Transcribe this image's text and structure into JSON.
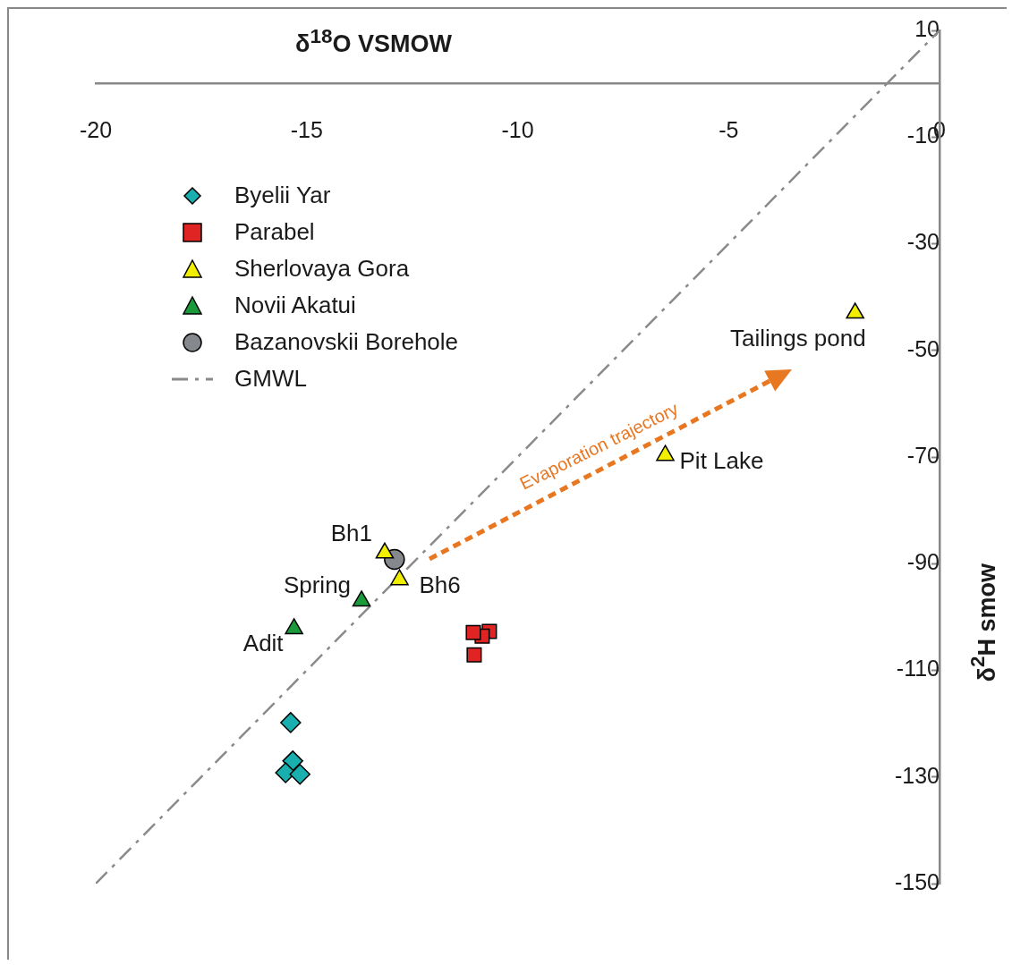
{
  "chart_data": {
    "type": "scatter",
    "xlabel": "δ$^{18}$O VSMOW",
    "ylabel": "δ$^{2}$H smow",
    "xlim": [
      -20,
      0
    ],
    "ylim": [
      -150,
      10
    ],
    "xticks": [
      -20,
      -15,
      -10,
      -5,
      0
    ],
    "yticks": [
      10,
      -10,
      -30,
      -50,
      -70,
      -90,
      -110,
      -130,
      -150
    ],
    "grid": false,
    "legend": "top left",
    "series": [
      {
        "name": "Byelii Yar",
        "type": "scatter",
        "marker": "diamond",
        "color": "#1aafaf",
        "x": [
          -15.38,
          -15.33,
          -15.5,
          -15.16
        ],
        "values": [
          -119.8,
          -127,
          -129.2,
          -129.5
        ]
      },
      {
        "name": "Parabel",
        "type": "scatter",
        "marker": "square",
        "color": "#e02424",
        "x": [
          -10.67,
          -10.84,
          -11.03,
          -11.05
        ],
        "values": [
          -102.7,
          -103.6,
          -107.1,
          -102.9
        ]
      },
      {
        "name": "Sherlovaya Gora",
        "type": "scatter",
        "marker": "triangle",
        "color": "#f2ee00",
        "x": [
          -2.0,
          -6.5,
          -13.15,
          -12.8
        ],
        "values": [
          -43,
          -69.7,
          -88,
          -93
        ]
      },
      {
        "name": "Novii Akatui",
        "type": "scatter",
        "marker": "triangle",
        "color": "#1a9a3a",
        "x": [
          -13.7,
          -15.3
        ],
        "values": [
          -97,
          -102.2
        ]
      },
      {
        "name": "Bazanovskii Borehole",
        "type": "scatter",
        "marker": "circle",
        "color": "#85888c",
        "x": [
          -12.92
        ],
        "values": [
          -89.2
        ]
      },
      {
        "name": "GMWL",
        "type": "line",
        "marker": "none",
        "line_style": "dashed",
        "color": "#8a8a8a",
        "x": [
          -20,
          0
        ],
        "values": [
          -150,
          10
        ]
      }
    ],
    "annotations": [
      {
        "text": "Tailings pond",
        "x": -2.0,
        "y": -43
      },
      {
        "text": "Pit Lake",
        "x": -6.5,
        "y": -69.7
      },
      {
        "text": "Bh1",
        "x": -13.15,
        "y": -88
      },
      {
        "text": "Bh6",
        "x": -12.8,
        "y": -93
      },
      {
        "text": "Spring",
        "x": -13.7,
        "y": -97
      },
      {
        "text": "Adit",
        "x": -15.3,
        "y": -102.2
      },
      "Evaporation trajectory"
    ]
  }
}
